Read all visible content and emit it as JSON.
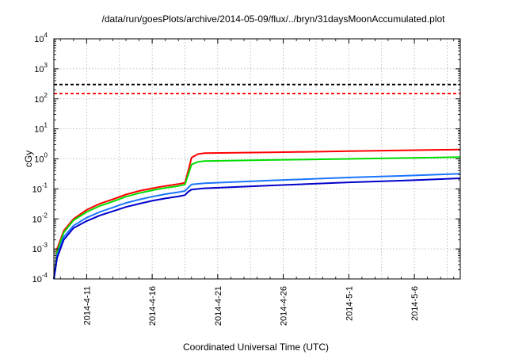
{
  "chart_data": {
    "type": "line",
    "title": "/data/run/goesPlots/archive/2014-05-09/flux/../bryn/31daysMoonAccumulated.plot",
    "xlabel": "Coordinated Universal Time (UTC)",
    "ylabel": "cGy",
    "y_scale": "log",
    "ylim": [
      0.0001,
      10000
    ],
    "xlim": [
      "2014-04-08T12:00",
      "2014-05-09T12:00"
    ],
    "grid": true,
    "x_ticks": [
      "2014-4-11",
      "2014-4-16",
      "2014-4-21",
      "2014-4-26",
      "2014-5-1",
      "2014-5-6"
    ],
    "y_ticks": [
      {
        "value": 0.0001,
        "base": "10",
        "exp": "-4"
      },
      {
        "value": 0.001,
        "base": "10",
        "exp": "-3"
      },
      {
        "value": 0.01,
        "base": "10",
        "exp": "-2"
      },
      {
        "value": 0.1,
        "base": "10",
        "exp": "-1"
      },
      {
        "value": 1,
        "base": "10",
        "exp": "0"
      },
      {
        "value": 10,
        "base": "10",
        "exp": "1"
      },
      {
        "value": 100,
        "base": "10",
        "exp": "2"
      },
      {
        "value": 1000,
        "base": "10",
        "exp": "3"
      },
      {
        "value": 10000,
        "base": "10",
        "exp": "4"
      }
    ],
    "reference_lines": [
      {
        "value": 300,
        "color": "#000000",
        "style": "dashed"
      },
      {
        "value": 150,
        "color": "#ff0000",
        "style": "dashed"
      }
    ],
    "series": [
      {
        "color": "#ff0000",
        "points": [
          [
            "2014-04-08T12:00",
            0.0001
          ],
          [
            "2014-04-08T18:00",
            0.001
          ],
          [
            "2014-04-09T06:00",
            0.004
          ],
          [
            "2014-04-10T00:00",
            0.01
          ],
          [
            "2014-04-11T00:00",
            0.02
          ],
          [
            "2014-04-12T00:00",
            0.032
          ],
          [
            "2014-04-13T00:00",
            0.045
          ],
          [
            "2014-04-14T00:00",
            0.065
          ],
          [
            "2014-04-15T00:00",
            0.085
          ],
          [
            "2014-04-16T00:00",
            0.105
          ],
          [
            "2014-04-17T00:00",
            0.125
          ],
          [
            "2014-04-18T00:00",
            0.145
          ],
          [
            "2014-04-18T12:00",
            0.16
          ],
          [
            "2014-04-18T18:00",
            0.4
          ],
          [
            "2014-04-19T00:00",
            1.1
          ],
          [
            "2014-04-19T12:00",
            1.45
          ],
          [
            "2014-04-20T00:00",
            1.55
          ],
          [
            "2014-04-25T00:00",
            1.65
          ],
          [
            "2014-05-01T00:00",
            1.8
          ],
          [
            "2014-05-06T00:00",
            1.95
          ],
          [
            "2014-05-09T12:00",
            2.05
          ]
        ]
      },
      {
        "color": "#00dd00",
        "points": [
          [
            "2014-04-08T12:00",
            0.0001
          ],
          [
            "2014-04-08T18:00",
            0.0008
          ],
          [
            "2014-04-09T06:00",
            0.0035
          ],
          [
            "2014-04-10T00:00",
            0.009
          ],
          [
            "2014-04-11T00:00",
            0.017
          ],
          [
            "2014-04-12T00:00",
            0.027
          ],
          [
            "2014-04-13T00:00",
            0.038
          ],
          [
            "2014-04-14T00:00",
            0.055
          ],
          [
            "2014-04-15T00:00",
            0.072
          ],
          [
            "2014-04-16T00:00",
            0.09
          ],
          [
            "2014-04-17T00:00",
            0.108
          ],
          [
            "2014-04-18T00:00",
            0.125
          ],
          [
            "2014-04-18T12:00",
            0.14
          ],
          [
            "2014-04-18T18:00",
            0.3
          ],
          [
            "2014-04-19T00:00",
            0.65
          ],
          [
            "2014-04-19T12:00",
            0.8
          ],
          [
            "2014-04-20T00:00",
            0.85
          ],
          [
            "2014-04-25T00:00",
            0.92
          ],
          [
            "2014-05-01T00:00",
            1.0
          ],
          [
            "2014-05-06T00:00",
            1.08
          ],
          [
            "2014-05-09T12:00",
            1.15
          ]
        ]
      },
      {
        "color": "#1a75ff",
        "points": [
          [
            "2014-04-08T12:00",
            0.0001
          ],
          [
            "2014-04-08T18:00",
            0.0006
          ],
          [
            "2014-04-09T06:00",
            0.0025
          ],
          [
            "2014-04-10T00:00",
            0.006
          ],
          [
            "2014-04-11T00:00",
            0.011
          ],
          [
            "2014-04-12T00:00",
            0.017
          ],
          [
            "2014-04-13T00:00",
            0.024
          ],
          [
            "2014-04-14T00:00",
            0.034
          ],
          [
            "2014-04-15T00:00",
            0.044
          ],
          [
            "2014-04-16T00:00",
            0.055
          ],
          [
            "2014-04-17T00:00",
            0.067
          ],
          [
            "2014-04-18T00:00",
            0.078
          ],
          [
            "2014-04-18T12:00",
            0.085
          ],
          [
            "2014-04-18T18:00",
            0.11
          ],
          [
            "2014-04-19T00:00",
            0.14
          ],
          [
            "2014-04-20T00:00",
            0.155
          ],
          [
            "2014-04-25T00:00",
            0.19
          ],
          [
            "2014-05-01T00:00",
            0.24
          ],
          [
            "2014-05-06T00:00",
            0.28
          ],
          [
            "2014-05-09T12:00",
            0.32
          ]
        ]
      },
      {
        "color": "#0000cc",
        "points": [
          [
            "2014-04-08T12:00",
            0.0001
          ],
          [
            "2014-04-08T18:00",
            0.0005
          ],
          [
            "2014-04-09T06:00",
            0.002
          ],
          [
            "2014-04-10T00:00",
            0.005
          ],
          [
            "2014-04-11T00:00",
            0.0085
          ],
          [
            "2014-04-12T00:00",
            0.013
          ],
          [
            "2014-04-13T00:00",
            0.018
          ],
          [
            "2014-04-14T00:00",
            0.025
          ],
          [
            "2014-04-15T00:00",
            0.032
          ],
          [
            "2014-04-16T00:00",
            0.04
          ],
          [
            "2014-04-17T00:00",
            0.048
          ],
          [
            "2014-04-18T00:00",
            0.056
          ],
          [
            "2014-04-18T12:00",
            0.062
          ],
          [
            "2014-04-18T18:00",
            0.08
          ],
          [
            "2014-04-19T00:00",
            0.095
          ],
          [
            "2014-04-20T00:00",
            0.105
          ],
          [
            "2014-04-25T00:00",
            0.13
          ],
          [
            "2014-05-01T00:00",
            0.165
          ],
          [
            "2014-05-06T00:00",
            0.195
          ],
          [
            "2014-05-09T12:00",
            0.225
          ]
        ]
      }
    ]
  }
}
